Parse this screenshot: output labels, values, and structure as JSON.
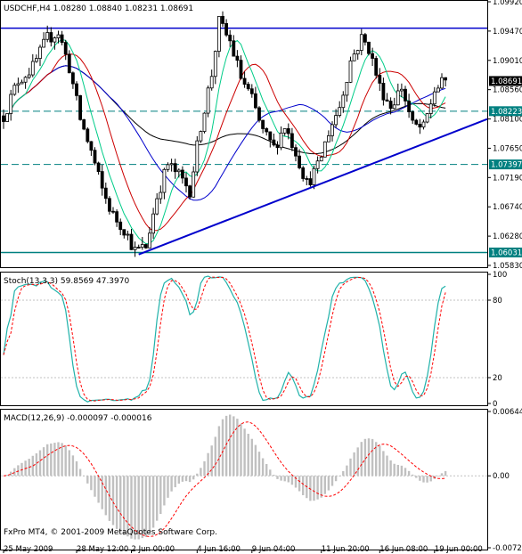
{
  "chart_data": [
    {
      "type": "candlestick",
      "title": "USDCHF,H4  1.08280 1.08840 1.08231 1.08691",
      "ylim": [
        1.0583,
        1.0992
      ],
      "yticks": [
        "1.09920",
        "1.09470",
        "1.09010",
        "1.08560",
        "1.08100",
        "1.07650",
        "1.07190",
        "1.06740",
        "1.06280",
        "1.05830"
      ],
      "price_labels": [
        {
          "value": 1.08691,
          "text": "1.08691",
          "style": "black"
        },
        {
          "value": 1.08223,
          "text": "1.08223",
          "style": "teal"
        },
        {
          "value": 1.07397,
          "text": "1.07397",
          "style": "teal"
        },
        {
          "value": 1.06031,
          "text": "1.06031",
          "style": "teal"
        }
      ],
      "horizontal_lines": [
        {
          "value": 1.0951,
          "color": "#0000cc",
          "style": "solid"
        },
        {
          "value": 1.08223,
          "color": "#008080",
          "style": "dashed"
        },
        {
          "value": 1.07397,
          "color": "#008080",
          "style": "dashed"
        },
        {
          "value": 1.06031,
          "color": "#008080",
          "style": "solid"
        }
      ],
      "trendline": {
        "from": {
          "bar": 37,
          "value": 1.06
        },
        "to": {
          "bar": 137,
          "value": 1.081
        },
        "color": "#0000cc"
      },
      "ma_colors": {
        "fast": "#00cc88",
        "mid": "#cc0000",
        "slow": "#0000cc",
        "long": "#000000"
      },
      "bars": 122
    },
    {
      "type": "line",
      "title": "Stoch(13,3,3) 59.8569 47.3970",
      "ylim": [
        0,
        100
      ],
      "yticks": [
        "100",
        "80",
        "20",
        "0"
      ],
      "series_colors": {
        "main": "#20b2aa",
        "signal": "#ff0000"
      }
    },
    {
      "type": "histogram",
      "title": "MACD(12,26,9) -0.000097 -0.000016",
      "ylim": [
        -0.0072,
        0.00644
      ],
      "yticks": [
        "0.00644",
        "0.00",
        "-0.0072"
      ],
      "series_colors": {
        "hist": "#c0c0c0",
        "signal": "#ff0000"
      }
    }
  ],
  "xaxis": {
    "labels": [
      "25 May 2009",
      "28 May 12:00",
      "2 Jun 00:00",
      "4 Jun 16:00",
      "9 Jun 04:00",
      "11 Jun 20:00",
      "16 Jun 08:00",
      "19 Jun 00:00"
    ],
    "label_bars": [
      0,
      20,
      35,
      53,
      68,
      87,
      103,
      118
    ]
  },
  "copyright": "FxPro MT4, © 2001-2009 MetaQuotes Software Corp."
}
